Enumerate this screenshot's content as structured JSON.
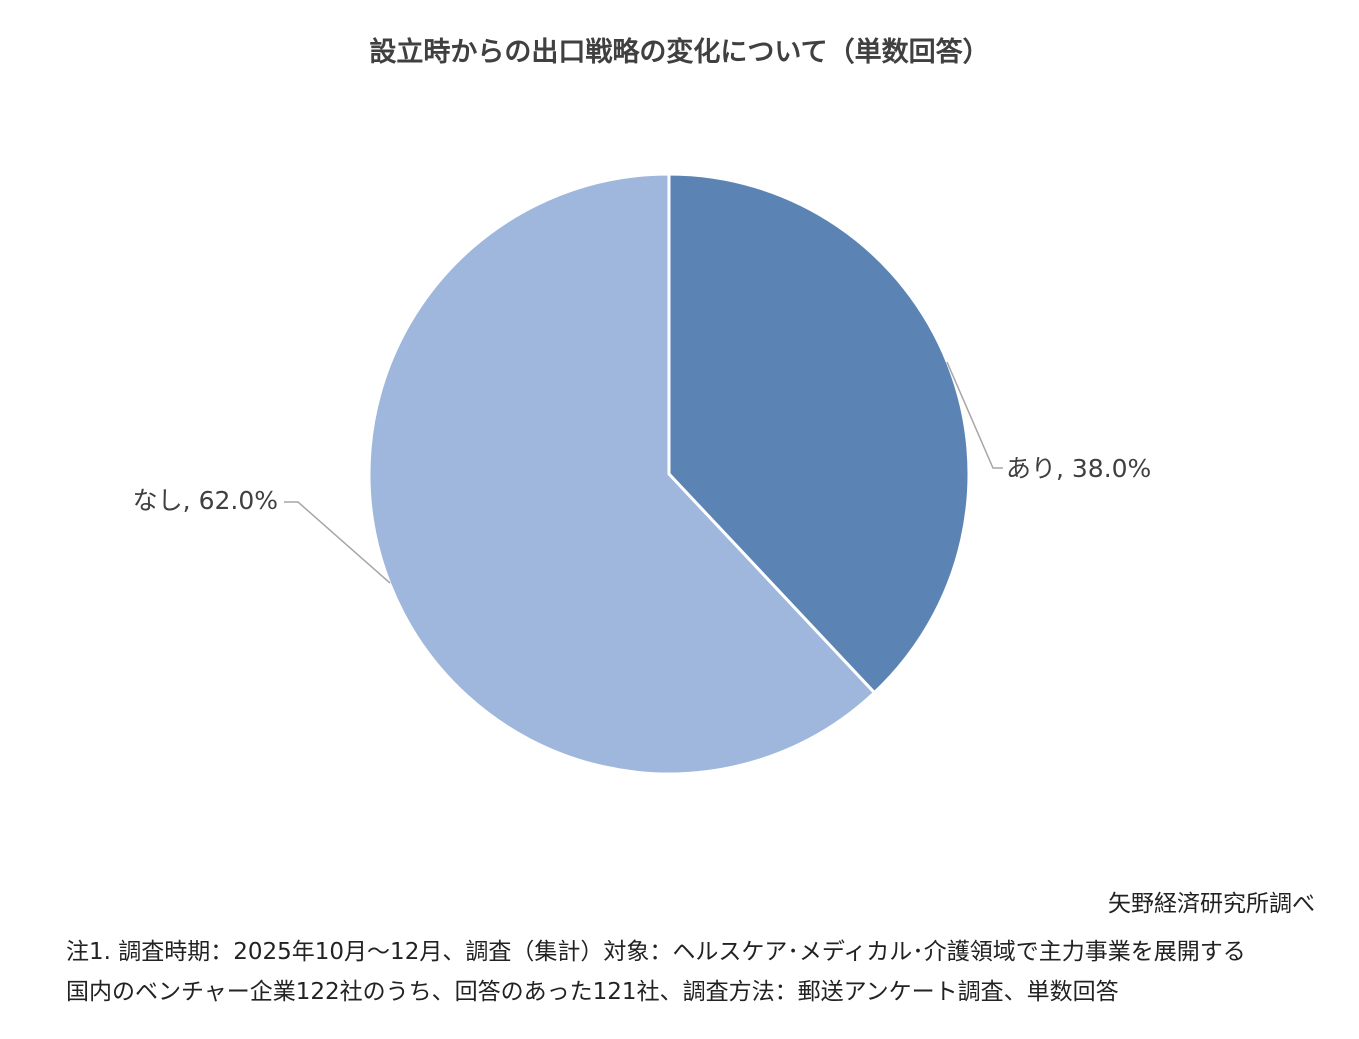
{
  "chart_data": {
    "type": "pie",
    "title": "設立時からの出口戦略の変化について（単数回答）",
    "slices": [
      {
        "label": "あり",
        "value": 38.0,
        "data_label": "あり, 38.0%",
        "color": "#5b84b5"
      },
      {
        "label": "なし",
        "value": 62.0,
        "data_label": "なし, 62.0%",
        "color": "#9fb7dc"
      }
    ],
    "start_angle": "12 o'clock, clockwise",
    "legend": "none"
  },
  "footer": {
    "source": "矢野経済研究所調べ",
    "note_line1": "注1. 調査時期：2025年10月～12月、調査（集計）対象：ヘルスケア･メディカル･介護領域で主力事業を展開する",
    "note_line2": "国内のベンチャー企業122社のうち、回答のあった121社、調査方法：郵送アンケート調査、単数回答"
  }
}
